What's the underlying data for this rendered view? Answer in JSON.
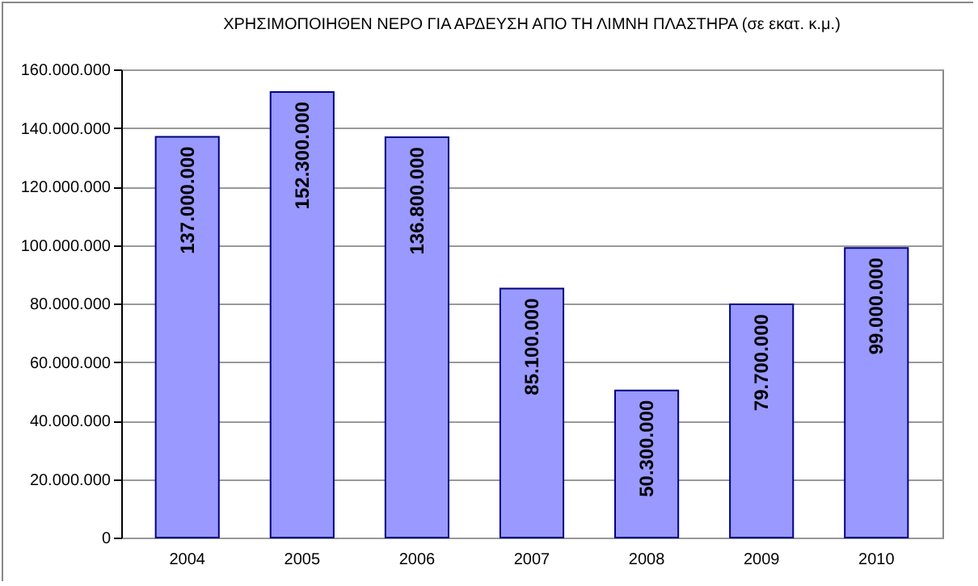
{
  "chart_data": {
    "type": "bar",
    "title": "ΧΡΗΣΙΜΟΠΟΙΗΘΕΝ ΝΕΡΟ ΓΙΑ ΑΡΔΕΥΣΗ ΑΠΟ ΤΗ ΛΙΜΝΗ ΠΛΑΣΤΗΡΑ (σε εκατ. κ.μ.)",
    "categories": [
      "2004",
      "2005",
      "2006",
      "2007",
      "2008",
      "2009",
      "2010"
    ],
    "values": [
      137000000,
      152300000,
      136800000,
      85100000,
      50300000,
      79700000,
      99000000
    ],
    "value_labels": [
      "137.000.000",
      "152.300.000",
      "136.800.000",
      "85.100.000",
      "50.300.000",
      "79.700.000",
      "99.000.000"
    ],
    "color": "#9999ff",
    "ylim": [
      0,
      160000000
    ],
    "yticks": [
      {
        "value": 0,
        "label": "0"
      },
      {
        "value": 20000000,
        "label": "20.000.000"
      },
      {
        "value": 40000000,
        "label": "40.000.000"
      },
      {
        "value": 60000000,
        "label": "60.000.000"
      },
      {
        "value": 80000000,
        "label": "80.000.000"
      },
      {
        "value": 100000000,
        "label": "100.000.000"
      },
      {
        "value": 120000000,
        "label": "120.000.000"
      },
      {
        "value": 140000000,
        "label": "140.000.000"
      },
      {
        "value": 160000000,
        "label": "160.000.000"
      }
    ],
    "grid": true
  }
}
